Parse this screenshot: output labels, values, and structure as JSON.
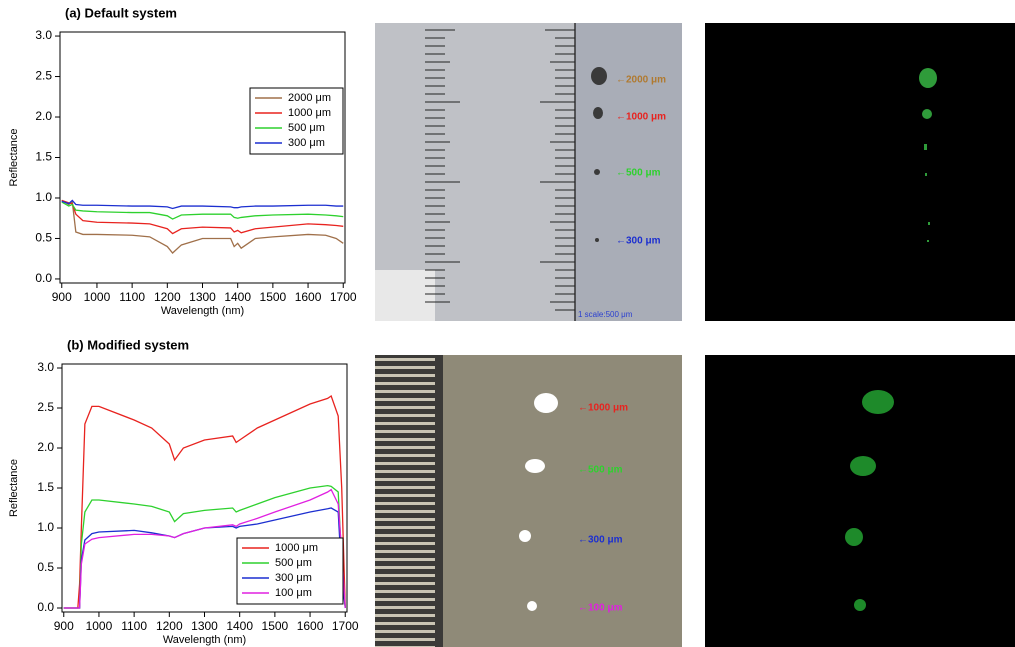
{
  "chart_data": [
    {
      "type": "line",
      "title": "(a) Default system",
      "xlabel": "Wavelength (nm)",
      "ylabel": "Reflectance",
      "x": [
        900,
        920,
        930,
        940,
        960,
        1000,
        1100,
        1150,
        1200,
        1215,
        1240,
        1300,
        1380,
        1390,
        1400,
        1410,
        1450,
        1500,
        1600,
        1650,
        1680,
        1700
      ],
      "series": [
        {
          "name": "2000 μm",
          "color": "#a0704a",
          "values": [
            0.97,
            0.92,
            0.95,
            0.58,
            0.55,
            0.55,
            0.54,
            0.52,
            0.4,
            0.32,
            0.42,
            0.5,
            0.5,
            0.4,
            0.44,
            0.38,
            0.5,
            0.52,
            0.55,
            0.54,
            0.5,
            0.44
          ]
        },
        {
          "name": "1000 μm",
          "color": "#e8231f",
          "values": [
            0.97,
            0.94,
            0.93,
            0.8,
            0.72,
            0.7,
            0.69,
            0.68,
            0.62,
            0.56,
            0.62,
            0.64,
            0.63,
            0.58,
            0.6,
            0.57,
            0.62,
            0.64,
            0.68,
            0.67,
            0.66,
            0.65
          ]
        },
        {
          "name": "500 μm",
          "color": "#2ed12e",
          "values": [
            0.95,
            0.9,
            0.92,
            0.85,
            0.84,
            0.83,
            0.82,
            0.82,
            0.78,
            0.74,
            0.79,
            0.8,
            0.8,
            0.76,
            0.75,
            0.76,
            0.78,
            0.79,
            0.8,
            0.79,
            0.78,
            0.77
          ]
        },
        {
          "name": "300 μm",
          "color": "#1c2fd0",
          "values": [
            0.96,
            0.93,
            0.97,
            0.92,
            0.91,
            0.91,
            0.9,
            0.9,
            0.89,
            0.87,
            0.9,
            0.9,
            0.89,
            0.88,
            0.88,
            0.89,
            0.9,
            0.9,
            0.91,
            0.91,
            0.9,
            0.9
          ]
        }
      ],
      "xlim": [
        895,
        1705
      ],
      "xticks": [
        900,
        1000,
        1100,
        1200,
        1300,
        1400,
        1500,
        1600,
        1700
      ],
      "ylim": [
        -0.05,
        3.05
      ],
      "yticks": [
        {
          "value": 0,
          "label": "0.0"
        },
        0.5,
        {
          "value": 1,
          "label": "1.0"
        },
        1.5,
        {
          "value": 2,
          "label": "2.0"
        },
        2.5,
        {
          "value": 3,
          "label": "3.0"
        }
      ],
      "legend": "upper right"
    },
    {
      "type": "line",
      "title": "(b) Modified system",
      "xlabel": "Wavelength (nm)",
      "ylabel": "Reflectance",
      "x": [
        900,
        940,
        945,
        950,
        960,
        980,
        1000,
        1100,
        1150,
        1200,
        1215,
        1240,
        1300,
        1380,
        1390,
        1400,
        1450,
        1500,
        1600,
        1650,
        1660,
        1680,
        1690,
        1700
      ],
      "series": [
        {
          "name": "1000 μm",
          "color": "#e8231f",
          "values": [
            0,
            0,
            0.3,
            1.0,
            2.3,
            2.52,
            2.52,
            2.35,
            2.25,
            2.05,
            1.85,
            2.0,
            2.1,
            2.15,
            2.07,
            2.1,
            2.25,
            2.35,
            2.55,
            2.62,
            2.65,
            2.4,
            1.5,
            0
          ]
        },
        {
          "name": "500 μm",
          "color": "#2ed12e",
          "values": [
            0,
            0,
            0,
            0.8,
            1.2,
            1.35,
            1.35,
            1.3,
            1.27,
            1.2,
            1.08,
            1.18,
            1.22,
            1.25,
            1.2,
            1.22,
            1.3,
            1.38,
            1.5,
            1.53,
            1.52,
            1.45,
            0.6,
            0
          ]
        },
        {
          "name": "300 μm",
          "color": "#1c2fd0",
          "values": [
            0,
            0,
            0,
            0.6,
            0.85,
            0.93,
            0.95,
            0.97,
            0.94,
            0.9,
            0.88,
            0.93,
            1.0,
            1.02,
            1.0,
            1.02,
            1.05,
            1.1,
            1.2,
            1.24,
            1.25,
            1.2,
            0.4,
            0
          ]
        },
        {
          "name": "100 μm",
          "color": "#e020e0",
          "values": [
            0,
            0,
            0,
            0.55,
            0.8,
            0.86,
            0.88,
            0.92,
            0.92,
            0.9,
            0.88,
            0.93,
            1.0,
            1.04,
            1.02,
            1.05,
            1.12,
            1.2,
            1.35,
            1.45,
            1.48,
            1.3,
            0.7,
            0
          ]
        }
      ],
      "xlim": [
        895,
        1705
      ],
      "xticks": [
        900,
        1000,
        1100,
        1200,
        1300,
        1400,
        1500,
        1600,
        1700
      ],
      "ylim": [
        -0.05,
        3.05
      ],
      "yticks": [
        {
          "value": 0,
          "label": "0.0"
        },
        0.5,
        {
          "value": 1,
          "label": "1.0"
        },
        1.5,
        {
          "value": 2,
          "label": "2.0"
        },
        2.5,
        {
          "value": 3,
          "label": "3.0"
        }
      ],
      "legend": "lower right"
    }
  ],
  "photos": [
    {
      "labels": [
        {
          "text": "←2000 μm",
          "color": "#b07a30"
        },
        {
          "text": "←1000 μm",
          "color": "#e8231f"
        },
        {
          "text": "←500 μm",
          "color": "#2ed12e"
        },
        {
          "text": "←300 μm",
          "color": "#1c2fd0"
        }
      ],
      "scale": "1 scale:500 μm"
    },
    {
      "labels": [
        {
          "text": "←1000 μm",
          "color": "#e8231f"
        },
        {
          "text": "←500 μm",
          "color": "#2ed12e"
        },
        {
          "text": "←300 μm",
          "color": "#1c2fd0"
        },
        {
          "text": "←100 μm",
          "color": "#e020e0"
        }
      ]
    }
  ]
}
